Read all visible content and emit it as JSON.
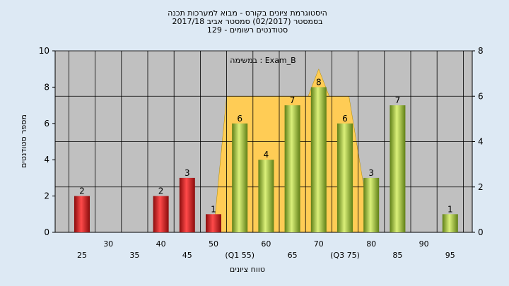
{
  "chart_data": {
    "type": "bar",
    "title": [
      "היסטוגרמת ציונים בקורס - מבוא למערכות תכנה",
      "בסמסטר  (02/2017)  סמסטר אביב 2017/18",
      "סטודנטים רשומים - 129"
    ],
    "xlabel": "טווח ציונים",
    "ylabel": "מספר סטודנטים",
    "annotation": "במשימה : Exam_B",
    "ylim": [
      0,
      10
    ],
    "yticks": [
      0,
      2,
      4,
      6,
      8,
      10
    ],
    "y2lim": [
      0,
      8
    ],
    "y2ticks": [
      0,
      2,
      4,
      6,
      8
    ],
    "grid": true,
    "x_tick_labels": [
      {
        "x": 25,
        "label": "25",
        "row": 2
      },
      {
        "x": 30,
        "label": "30",
        "row": 1
      },
      {
        "x": 35,
        "label": "35",
        "row": 2
      },
      {
        "x": 40,
        "label": "40",
        "row": 1
      },
      {
        "x": 45,
        "label": "45",
        "row": 2
      },
      {
        "x": 50,
        "label": "50",
        "row": 1
      },
      {
        "x": 55,
        "label": "(Q1 55)",
        "row": 2
      },
      {
        "x": 60,
        "label": "60",
        "row": 1
      },
      {
        "x": 65,
        "label": "65",
        "row": 2
      },
      {
        "x": 70,
        "label": "70",
        "row": 1
      },
      {
        "x": 75,
        "label": "(Q3 75)",
        "row": 2
      },
      {
        "x": 80,
        "label": "80",
        "row": 1
      },
      {
        "x": 85,
        "label": "85",
        "row": 2
      },
      {
        "x": 90,
        "label": "90",
        "row": 1
      },
      {
        "x": 95,
        "label": "95",
        "row": 2
      }
    ],
    "bars": [
      {
        "x": 25,
        "value": 2,
        "color": "red"
      },
      {
        "x": 40,
        "value": 2,
        "color": "red"
      },
      {
        "x": 45,
        "value": 3,
        "color": "red"
      },
      {
        "x": 50,
        "value": 1,
        "color": "red"
      },
      {
        "x": 55,
        "value": 6,
        "color": "green"
      },
      {
        "x": 60,
        "value": 4,
        "color": "green"
      },
      {
        "x": 65,
        "value": 7,
        "color": "green"
      },
      {
        "x": 70,
        "value": 8,
        "color": "green"
      },
      {
        "x": 75,
        "value": 6,
        "color": "green"
      },
      {
        "x": 80,
        "value": 3,
        "color": "green"
      },
      {
        "x": 85,
        "value": 7,
        "color": "green"
      },
      {
        "x": 95,
        "value": 1,
        "color": "green"
      }
    ],
    "box_plot": {
      "x_start": 50,
      "q1": 55,
      "peak_x": 70,
      "q3": 75,
      "x_end": 80,
      "peak_value": 9,
      "plateau_value": 7.5
    },
    "colors": {
      "plot_bg": "#c0c0c0",
      "box_fill": "#ffcc55",
      "red": "#e02020",
      "green": "#a8c84a",
      "page_bg": "#dde9f4"
    }
  }
}
